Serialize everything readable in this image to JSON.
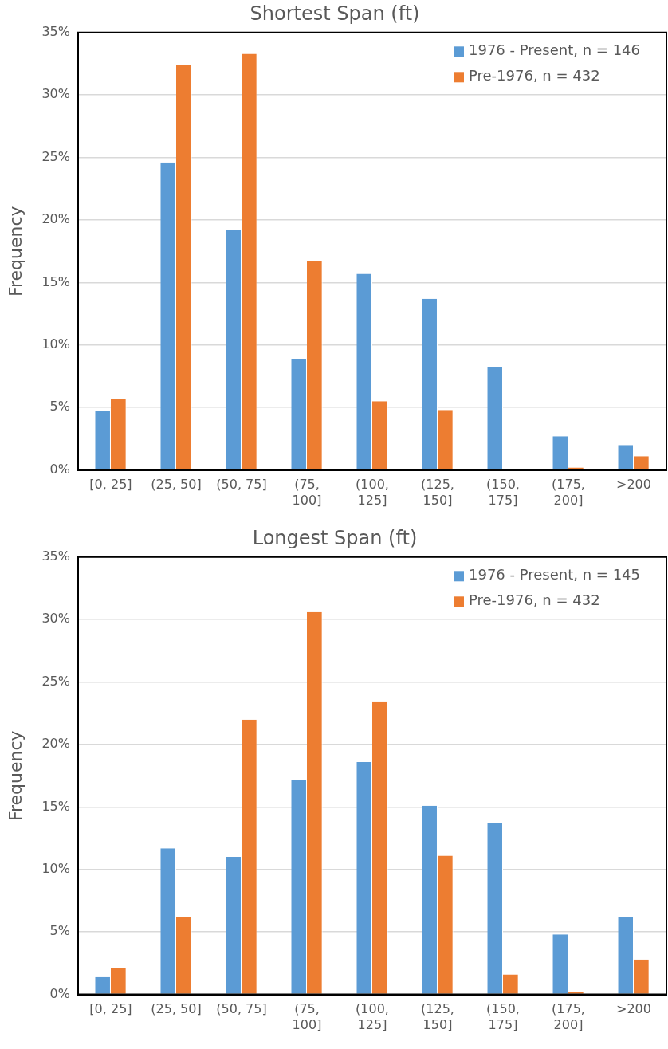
{
  "chart_data": [
    {
      "type": "bar",
      "title": "Shortest Span (ft)",
      "ylabel": "Frequency",
      "categories": [
        "[0, 25]",
        "(25, 50]",
        "(50, 75]",
        "(75, 100]",
        "(100, 125]",
        "(125, 150]",
        "(150, 175]",
        "(175, 200]",
        ">200"
      ],
      "series": [
        {
          "name": "1976 - Present, n = 146",
          "color": "#5b9bd5",
          "values": [
            4.7,
            24.6,
            19.2,
            8.9,
            15.7,
            13.7,
            8.2,
            2.7,
            2.0
          ]
        },
        {
          "name": "Pre-1976, n = 432",
          "color": "#ed7d31",
          "values": [
            5.7,
            32.4,
            33.3,
            16.7,
            5.5,
            4.8,
            0,
            0.2,
            1.1
          ]
        }
      ],
      "ylim": [
        0,
        35
      ],
      "yticks": [
        {
          "value": 0,
          "label": "0%"
        },
        {
          "value": 5,
          "label": "5%"
        },
        {
          "value": 10,
          "label": "10%"
        },
        {
          "value": 15,
          "label": "15%"
        },
        {
          "value": 20,
          "label": "20%"
        },
        {
          "value": 25,
          "label": "25%"
        },
        {
          "value": 30,
          "label": "30%"
        },
        {
          "value": 35,
          "label": "35%"
        }
      ],
      "grid": "y",
      "legend": "top right"
    },
    {
      "type": "bar",
      "title": "Longest Span (ft)",
      "ylabel": "Frequency",
      "categories": [
        "[0, 25]",
        "(25, 50]",
        "(50, 75]",
        "(75, 100]",
        "(100, 125]",
        "(125, 150]",
        "(150, 175]",
        "(175, 200]",
        ">200"
      ],
      "series": [
        {
          "name": "1976 - Present, n = 145",
          "color": "#5b9bd5",
          "values": [
            1.4,
            11.7,
            11.0,
            17.2,
            18.6,
            15.1,
            13.7,
            4.8,
            6.2
          ]
        },
        {
          "name": "Pre-1976, n = 432",
          "color": "#ed7d31",
          "values": [
            2.1,
            6.2,
            22.0,
            30.6,
            23.4,
            11.1,
            1.6,
            0.2,
            2.8
          ]
        }
      ],
      "ylim": [
        0,
        35
      ],
      "yticks": [
        {
          "value": 0,
          "label": "0%"
        },
        {
          "value": 5,
          "label": "5%"
        },
        {
          "value": 10,
          "label": "10%"
        },
        {
          "value": 15,
          "label": "15%"
        },
        {
          "value": 20,
          "label": "20%"
        },
        {
          "value": 25,
          "label": "25%"
        },
        {
          "value": 30,
          "label": "30%"
        },
        {
          "value": 35,
          "label": "35%"
        }
      ],
      "grid": "y",
      "legend": "top right"
    }
  ]
}
